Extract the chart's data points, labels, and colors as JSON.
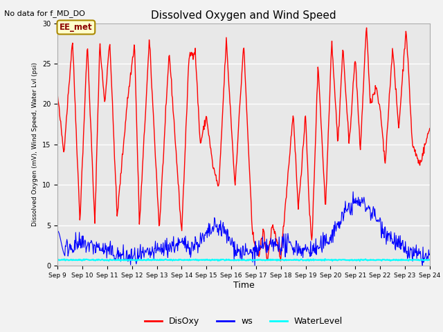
{
  "title": "Dissolved Oxygen and Wind Speed",
  "top_left_text": "No data for f_MD_DO",
  "annotation_text": "EE_met",
  "ylabel": "Dissolved Oxygen (mV), Wind Speed, Water Lvl (psi)",
  "xlabel": "Time",
  "xlim_days": [
    9,
    24
  ],
  "ylim": [
    0,
    30
  ],
  "yticks": [
    0,
    5,
    10,
    15,
    20,
    25,
    30
  ],
  "xtick_labels": [
    "Sep 9",
    "Sep 10",
    "Sep 11",
    "Sep 12",
    "Sep 13",
    "Sep 14",
    "Sep 15",
    "Sep 16",
    "Sep 17",
    "Sep 18",
    "Sep 19",
    "Sep 20",
    "Sep 21",
    "Sep 22",
    "Sep 23",
    "Sep 24"
  ],
  "bg_color": "#e8e8e8",
  "fig_bg": "#f2f2f2",
  "disoxy_color": "red",
  "ws_color": "blue",
  "water_color": "cyan",
  "disoxy_lw": 1.0,
  "ws_lw": 0.8,
  "water_lw": 1.5,
  "legend_labels": [
    "DisOxy",
    "ws",
    "WaterLevel"
  ],
  "legend_colors": [
    "red",
    "blue",
    "cyan"
  ]
}
